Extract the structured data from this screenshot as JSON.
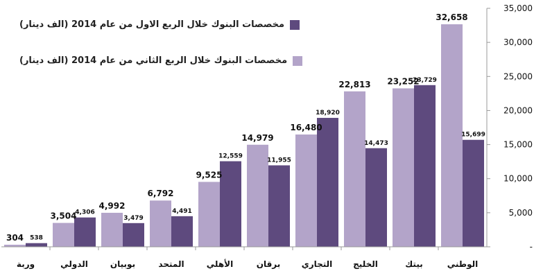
{
  "chart_data": {
    "type": "bar",
    "categories": [
      "وربة",
      "الدولي",
      "بوبيان",
      "المتحد",
      "الأهلي",
      "برقان",
      "التجاري",
      "الخليج",
      "بيتك",
      "الوطني"
    ],
    "series": [
      {
        "name": "مخصصات البنوك خلال الربع الثاني من عام 2014 (الف دينار)",
        "color": "#b3a4c9",
        "values": [
          304,
          3504,
          4992,
          6792,
          9525,
          14979,
          16480,
          22813,
          23252,
          32658
        ],
        "labels": [
          "304",
          "3,504",
          "4,992",
          "6,792",
          "9,525",
          "14,979",
          "16,480",
          "22,813",
          "23,252",
          "32,658"
        ]
      },
      {
        "name": "مخصصات البنوك خلال الربع الاول من عام 2014 (الف دينار)",
        "color": "#5e4a7e",
        "values": [
          538,
          4306,
          3479,
          4491,
          12559,
          11955,
          18920,
          14473,
          23729,
          15699
        ],
        "labels": [
          "538",
          "4,306",
          "3,479",
          "4,491",
          "12,559",
          "11,955",
          "18,920",
          "14,473",
          "23,729",
          "15,699"
        ]
      }
    ],
    "ylim": [
      0,
      35000
    ],
    "yticks": [
      0,
      5000,
      10000,
      15000,
      20000,
      25000,
      30000,
      35000
    ],
    "ytick_labels": [
      "-",
      "5,000",
      "10,000",
      "15,000",
      "20,000",
      "25,000",
      "30,000",
      "35,000"
    ],
    "y_axis_position": "right",
    "legend_position": "top-left",
    "grid": false
  }
}
